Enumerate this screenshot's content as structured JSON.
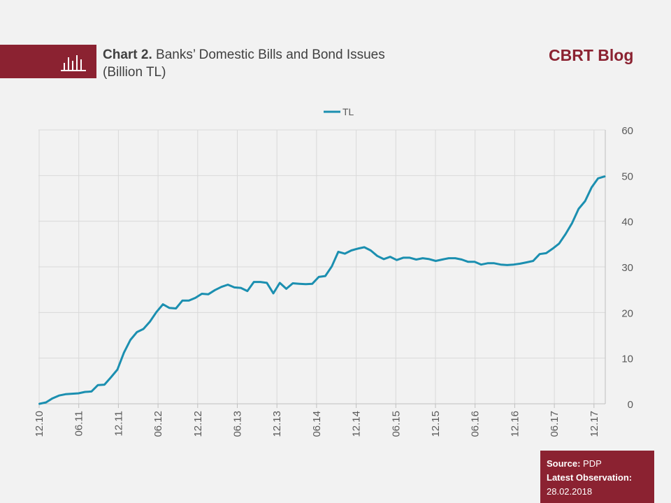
{
  "header": {
    "chart_number": "Chart 2.",
    "title_line1": "Banks’ Domestic Bills and Bond Issues",
    "title_line2": "(Billion TL)",
    "brand": "CBRT Blog"
  },
  "footer": {
    "source_label": "Source:",
    "source_value": "PDP",
    "latest_label": "Latest Observation:",
    "latest_value": "28.02.2018"
  },
  "colors": {
    "brand": "#8b2231",
    "line": "#1b8fb0",
    "grid": "#d9d9d9"
  },
  "chart_data": {
    "type": "line",
    "title": "",
    "xlabel": "",
    "ylabel": "",
    "ylim": [
      0,
      60
    ],
    "yticks": [
      0,
      10,
      20,
      30,
      40,
      50,
      60
    ],
    "y_axis_side": "right",
    "grid": true,
    "legend_position": "top",
    "x_tick_labels": [
      "12.10",
      "06.11",
      "12.11",
      "06.12",
      "12.12",
      "06.13",
      "12.13",
      "06.14",
      "12.14",
      "06.15",
      "12.15",
      "06.16",
      "12.16",
      "06.17",
      "12.17"
    ],
    "series": [
      {
        "name": "TL",
        "values": [
          0.0,
          0.3,
          1.2,
          1.8,
          2.1,
          2.2,
          2.3,
          2.6,
          2.7,
          4.1,
          4.2,
          5.8,
          7.5,
          11.2,
          14.0,
          15.7,
          16.4,
          18.0,
          20.1,
          21.8,
          21.0,
          20.9,
          22.6,
          22.6,
          23.2,
          24.1,
          24.0,
          24.9,
          25.6,
          26.1,
          25.5,
          25.4,
          24.7,
          26.7,
          26.7,
          26.5,
          24.2,
          26.5,
          25.2,
          26.4,
          26.3,
          26.2,
          26.3,
          27.8,
          28.0,
          30.1,
          33.3,
          32.9,
          33.6,
          34.0,
          34.3,
          33.6,
          32.4,
          31.7,
          32.2,
          31.5,
          32.0,
          32.0,
          31.6,
          31.9,
          31.7,
          31.3,
          31.6,
          31.9,
          31.9,
          31.6,
          31.1,
          31.1,
          30.5,
          30.8,
          30.8,
          30.5,
          30.4,
          30.5,
          30.7,
          31.0,
          31.3,
          32.8,
          33.0,
          34.0,
          35.1,
          37.2,
          39.6,
          42.7,
          44.4,
          47.4,
          49.4,
          49.8
        ]
      }
    ]
  }
}
